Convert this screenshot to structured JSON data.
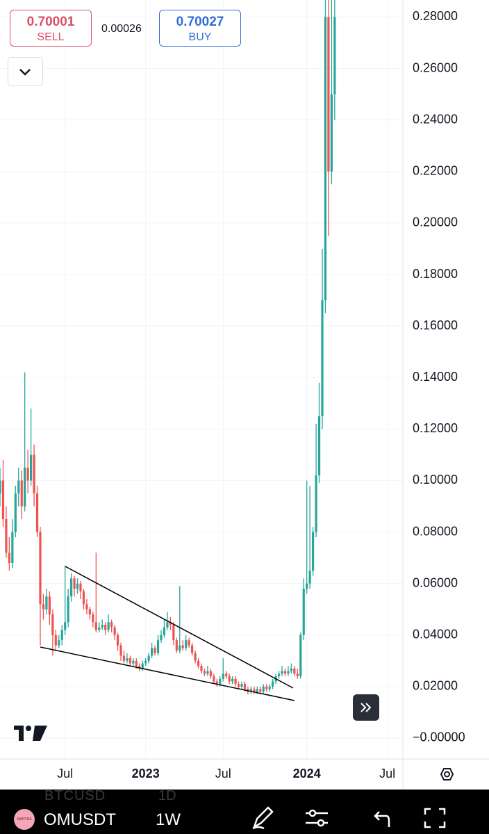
{
  "order_panel": {
    "sell_price": "0.70001",
    "sell_label": "SELL",
    "spread": "0.00026",
    "buy_price": "0.70027",
    "buy_label": "BUY"
  },
  "chart_data": {
    "type": "candlestick",
    "up_color": "#26a69a",
    "down_color": "#ef5350",
    "grid": true,
    "candles": [
      [
        0.095,
        0.105,
        0.09,
        0.1
      ],
      [
        0.1,
        0.108,
        0.082,
        0.085
      ],
      [
        0.085,
        0.09,
        0.07,
        0.072
      ],
      [
        0.072,
        0.078,
        0.065,
        0.068
      ],
      [
        0.068,
        0.085,
        0.066,
        0.08
      ],
      [
        0.08,
        0.098,
        0.078,
        0.095
      ],
      [
        0.095,
        0.105,
        0.09,
        0.1
      ],
      [
        0.1,
        0.104,
        0.085,
        0.09
      ],
      [
        0.09,
        0.142,
        0.088,
        0.105
      ],
      [
        0.105,
        0.112,
        0.095,
        0.1
      ],
      [
        0.1,
        0.128,
        0.098,
        0.11
      ],
      [
        0.11,
        0.114,
        0.09,
        0.095
      ],
      [
        0.095,
        0.098,
        0.078,
        0.08
      ],
      [
        0.08,
        0.082,
        0.036,
        0.052
      ],
      [
        0.052,
        0.056,
        0.046,
        0.05
      ],
      [
        0.05,
        0.058,
        0.048,
        0.055
      ],
      [
        0.055,
        0.057,
        0.044,
        0.048
      ],
      [
        0.048,
        0.05,
        0.032,
        0.04
      ],
      [
        0.04,
        0.042,
        0.034,
        0.036
      ],
      [
        0.036,
        0.04,
        0.035,
        0.038
      ],
      [
        0.038,
        0.044,
        0.036,
        0.042
      ],
      [
        0.042,
        0.067,
        0.04,
        0.045
      ],
      [
        0.045,
        0.058,
        0.043,
        0.055
      ],
      [
        0.055,
        0.064,
        0.053,
        0.062
      ],
      [
        0.062,
        0.063,
        0.055,
        0.058
      ],
      [
        0.058,
        0.062,
        0.056,
        0.06
      ],
      [
        0.06,
        0.061,
        0.054,
        0.057
      ],
      [
        0.057,
        0.058,
        0.05,
        0.052
      ],
      [
        0.052,
        0.054,
        0.048,
        0.05
      ],
      [
        0.05,
        0.051,
        0.046,
        0.048
      ],
      [
        0.048,
        0.049,
        0.043,
        0.045
      ],
      [
        0.045,
        0.072,
        0.041,
        0.042
      ],
      [
        0.042,
        0.045,
        0.041,
        0.043
      ],
      [
        0.043,
        0.046,
        0.042,
        0.044
      ],
      [
        0.044,
        0.045,
        0.04,
        0.042
      ],
      [
        0.042,
        0.048,
        0.041,
        0.045
      ],
      [
        0.045,
        0.046,
        0.041,
        0.043
      ],
      [
        0.043,
        0.044,
        0.038,
        0.04
      ],
      [
        0.04,
        0.041,
        0.034,
        0.036
      ],
      [
        0.036,
        0.037,
        0.03,
        0.032
      ],
      [
        0.032,
        0.034,
        0.029,
        0.03
      ],
      [
        0.03,
        0.033,
        0.029,
        0.031
      ],
      [
        0.031,
        0.032,
        0.028,
        0.029
      ],
      [
        0.029,
        0.031,
        0.028,
        0.03
      ],
      [
        0.03,
        0.031,
        0.027,
        0.028
      ],
      [
        0.028,
        0.029,
        0.026,
        0.027
      ],
      [
        0.027,
        0.03,
        0.026,
        0.029
      ],
      [
        0.029,
        0.031,
        0.028,
        0.03
      ],
      [
        0.03,
        0.033,
        0.029,
        0.032
      ],
      [
        0.032,
        0.037,
        0.031,
        0.035
      ],
      [
        0.035,
        0.036,
        0.032,
        0.033
      ],
      [
        0.033,
        0.04,
        0.032,
        0.038
      ],
      [
        0.038,
        0.042,
        0.037,
        0.04
      ],
      [
        0.04,
        0.046,
        0.039,
        0.043
      ],
      [
        0.043,
        0.049,
        0.042,
        0.045
      ],
      [
        0.045,
        0.047,
        0.042,
        0.044
      ],
      [
        0.044,
        0.045,
        0.036,
        0.038
      ],
      [
        0.038,
        0.039,
        0.033,
        0.034
      ],
      [
        0.034,
        0.059,
        0.033,
        0.036
      ],
      [
        0.036,
        0.038,
        0.034,
        0.035
      ],
      [
        0.035,
        0.04,
        0.034,
        0.038
      ],
      [
        0.038,
        0.039,
        0.035,
        0.036
      ],
      [
        0.036,
        0.037,
        0.032,
        0.033
      ],
      [
        0.033,
        0.034,
        0.029,
        0.03
      ],
      [
        0.03,
        0.031,
        0.027,
        0.028
      ],
      [
        0.028,
        0.029,
        0.025,
        0.026
      ],
      [
        0.026,
        0.027,
        0.024,
        0.025
      ],
      [
        0.025,
        0.028,
        0.024,
        0.026
      ],
      [
        0.026,
        0.027,
        0.023,
        0.024
      ],
      [
        0.024,
        0.025,
        0.021,
        0.022
      ],
      [
        0.022,
        0.023,
        0.02,
        0.021
      ],
      [
        0.021,
        0.024,
        0.02,
        0.023
      ],
      [
        0.023,
        0.031,
        0.022,
        0.025
      ],
      [
        0.025,
        0.026,
        0.023,
        0.024
      ],
      [
        0.024,
        0.025,
        0.021,
        0.022
      ],
      [
        0.022,
        0.024,
        0.021,
        0.023
      ],
      [
        0.023,
        0.024,
        0.02,
        0.021
      ],
      [
        0.021,
        0.022,
        0.019,
        0.02
      ],
      [
        0.02,
        0.022,
        0.019,
        0.021
      ],
      [
        0.021,
        0.022,
        0.018,
        0.019
      ],
      [
        0.019,
        0.02,
        0.017,
        0.018
      ],
      [
        0.018,
        0.02,
        0.017,
        0.019
      ],
      [
        0.019,
        0.02,
        0.017,
        0.018
      ],
      [
        0.018,
        0.02,
        0.017,
        0.019
      ],
      [
        0.019,
        0.02,
        0.017,
        0.018
      ],
      [
        0.018,
        0.021,
        0.017,
        0.02
      ],
      [
        0.02,
        0.021,
        0.018,
        0.019
      ],
      [
        0.019,
        0.021,
        0.018,
        0.02
      ],
      [
        0.02,
        0.023,
        0.019,
        0.022
      ],
      [
        0.022,
        0.025,
        0.021,
        0.024
      ],
      [
        0.024,
        0.026,
        0.023,
        0.025
      ],
      [
        0.025,
        0.028,
        0.024,
        0.026
      ],
      [
        0.026,
        0.027,
        0.024,
        0.025
      ],
      [
        0.025,
        0.028,
        0.024,
        0.026
      ],
      [
        0.026,
        0.029,
        0.025,
        0.027
      ],
      [
        0.027,
        0.028,
        0.024,
        0.025
      ],
      [
        0.025,
        0.027,
        0.023,
        0.024
      ],
      [
        0.024,
        0.041,
        0.023,
        0.04
      ],
      [
        0.04,
        0.062,
        0.038,
        0.058
      ],
      [
        0.058,
        0.1,
        0.056,
        0.06
      ],
      [
        0.06,
        0.098,
        0.058,
        0.065
      ],
      [
        0.065,
        0.082,
        0.063,
        0.08
      ],
      [
        0.08,
        0.122,
        0.078,
        0.102
      ],
      [
        0.102,
        0.138,
        0.099,
        0.125
      ],
      [
        0.125,
        0.19,
        0.12,
        0.17
      ],
      [
        0.17,
        0.29,
        0.165,
        0.28
      ],
      [
        0.28,
        0.29,
        0.195,
        0.22
      ],
      [
        0.22,
        0.29,
        0.215,
        0.25
      ],
      [
        0.25,
        0.29,
        0.24,
        0.28
      ]
    ],
    "xlim": [
      0,
      130
    ],
    "xticks": [
      {
        "value": 21,
        "label": "Jul"
      },
      {
        "value": 47,
        "label": "2023"
      },
      {
        "value": 72,
        "label": "Jul"
      },
      {
        "value": 99,
        "label": "2024"
      },
      {
        "value": 125,
        "label": "Jul"
      }
    ],
    "ylim": [
      -0.0081,
      0.2866
    ],
    "yticks": [
      {
        "value": 0.28,
        "label": "0.28000"
      },
      {
        "value": 0.26,
        "label": "0.26000"
      },
      {
        "value": 0.24,
        "label": "0.24000"
      },
      {
        "value": 0.22,
        "label": "0.22000"
      },
      {
        "value": 0.2,
        "label": "0.20000"
      },
      {
        "value": 0.18,
        "label": "0.18000"
      },
      {
        "value": 0.16,
        "label": "0.16000"
      },
      {
        "value": 0.14,
        "label": "0.14000"
      },
      {
        "value": 0.12,
        "label": "0.12000"
      },
      {
        "value": 0.1,
        "label": "0.10000"
      },
      {
        "value": 0.08,
        "label": "0.08000"
      },
      {
        "value": 0.06,
        "label": "0.06000"
      },
      {
        "value": 0.04,
        "label": "0.04000"
      },
      {
        "value": 0.02,
        "label": "0.02000"
      },
      {
        "value": 0,
        "label": "−0.00000"
      }
    ]
  },
  "toolbar": {
    "ghost_symbol": "BTCUSD",
    "ghost_interval": "1D",
    "logo": "MANTRA",
    "symbol": "OMUSDT",
    "interval": "1W"
  }
}
